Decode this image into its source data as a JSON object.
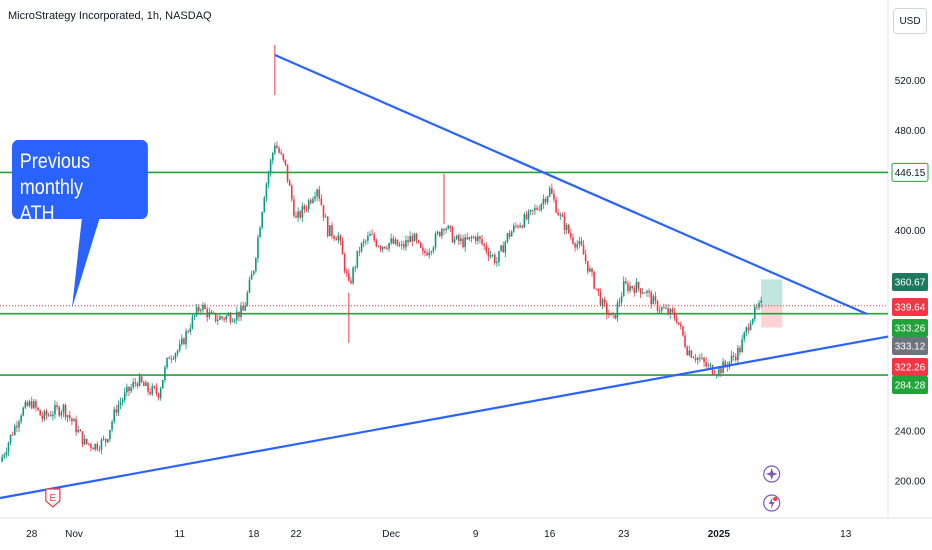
{
  "header": {
    "title": "MicroStrategy Incorporated, 1h, NASDAQ",
    "currency_button": "USD"
  },
  "annotation": {
    "text_line1": "Previous monthly",
    "text_line2": "ATH"
  },
  "colors": {
    "up": "#089981",
    "down": "#f23645",
    "trendline": "#2962ff",
    "hline": "#22a33a",
    "label_green": "#22a33a",
    "label_teal": "#1e7a5c",
    "label_red": "#f23645",
    "label_gray": "#6f737d"
  },
  "chart_data": {
    "type": "candlestick",
    "symbol": "MicroStrategy Incorporated",
    "interval": "1h",
    "exchange": "NASDAQ",
    "currency": "USD",
    "y_axis": {
      "ticks": [
        200.0,
        240.0,
        280.0,
        320.0,
        360.0,
        400.0,
        440.0,
        480.0,
        520.0
      ],
      "tick_labels": [
        "200.00",
        "240.00",
        "400.00",
        "480.00",
        "520.00"
      ],
      "range": [
        180,
        560
      ]
    },
    "x_axis": {
      "tick_labels": [
        "28",
        "Nov",
        "11",
        "18",
        "22",
        "Dec",
        "9",
        "16",
        "23",
        "2025",
        "13"
      ],
      "range": [
        "2024-10-25",
        "2025-01-17"
      ]
    },
    "horizontal_lines": [
      {
        "value": 446.15,
        "label": "446.15"
      },
      {
        "value": 333.26,
        "label": "333.26"
      },
      {
        "value": 284.28,
        "label": "284.28"
      }
    ],
    "trendlines": [
      {
        "from": {
          "date": "2024-11-20",
          "price": 540
        },
        "to": {
          "date": "2025-01-15",
          "price": 333
        }
      },
      {
        "from": {
          "date": "2024-10-25",
          "price": 186
        },
        "to": {
          "date": "2025-01-17",
          "price": 315
        }
      }
    ],
    "price_labels": [
      {
        "value": 360.67,
        "label": "360.67",
        "color": "teal"
      },
      {
        "value": 339.64,
        "label": "339.64",
        "color": "red"
      },
      {
        "value": 333.26,
        "label": "333.26",
        "color": "green"
      },
      {
        "value": 333.12,
        "label": "333.12",
        "color": "gray"
      },
      {
        "value": 322.26,
        "label": "322.26",
        "color": "red"
      },
      {
        "value": 284.28,
        "label": "284.28",
        "color": "green"
      }
    ],
    "dotted_price_line": 339.64,
    "position_tool": {
      "entry": 339.64,
      "target": 360.67,
      "stop": 322.26
    },
    "price_path": [
      [
        "2024-10-25",
        215
      ],
      [
        "2024-10-26",
        235
      ],
      [
        "2024-10-27",
        255
      ],
      [
        "2024-10-28",
        262
      ],
      [
        "2024-10-29",
        250
      ],
      [
        "2024-10-30",
        255
      ],
      [
        "2024-10-31",
        258
      ],
      [
        "2024-11-01",
        245
      ],
      [
        "2024-11-02",
        230
      ],
      [
        "2024-11-03",
        228
      ],
      [
        "2024-11-04",
        232
      ],
      [
        "2024-11-05",
        258
      ],
      [
        "2024-11-06",
        270
      ],
      [
        "2024-11-07",
        280
      ],
      [
        "2024-11-08",
        272
      ],
      [
        "2024-11-09",
        270
      ],
      [
        "2024-11-10",
        300
      ],
      [
        "2024-11-11",
        305
      ],
      [
        "2024-11-12",
        325
      ],
      [
        "2024-11-13",
        340
      ],
      [
        "2024-11-14",
        330
      ],
      [
        "2024-11-15",
        330
      ],
      [
        "2024-11-16",
        332
      ],
      [
        "2024-11-17",
        335
      ],
      [
        "2024-11-18",
        370
      ],
      [
        "2024-11-19",
        430
      ],
      [
        "2024-11-20",
        470
      ],
      [
        "2024-11-21",
        450
      ],
      [
        "2024-11-22",
        408
      ],
      [
        "2024-11-23",
        420
      ],
      [
        "2024-11-24",
        435
      ],
      [
        "2024-11-25",
        400
      ],
      [
        "2024-11-26",
        395
      ],
      [
        "2024-11-27",
        355
      ],
      [
        "2024-11-28",
        385
      ],
      [
        "2024-11-29",
        395
      ],
      [
        "2024-11-30",
        388
      ],
      [
        "2024-12-01",
        390
      ],
      [
        "2024-12-02",
        386
      ],
      [
        "2024-12-03",
        395
      ],
      [
        "2024-12-04",
        380
      ],
      [
        "2024-12-05",
        390
      ],
      [
        "2024-12-06",
        405
      ],
      [
        "2024-12-07",
        392
      ],
      [
        "2024-12-08",
        390
      ],
      [
        "2024-12-09",
        395
      ],
      [
        "2024-12-10",
        385
      ],
      [
        "2024-12-11",
        375
      ],
      [
        "2024-12-12",
        395
      ],
      [
        "2024-12-13",
        405
      ],
      [
        "2024-12-14",
        410
      ],
      [
        "2024-12-15",
        420
      ],
      [
        "2024-12-16",
        432
      ],
      [
        "2024-12-17",
        410
      ],
      [
        "2024-12-18",
        395
      ],
      [
        "2024-12-19",
        385
      ],
      [
        "2024-12-20",
        362
      ],
      [
        "2024-12-21",
        340
      ],
      [
        "2024-12-22",
        328
      ],
      [
        "2024-12-23",
        355
      ],
      [
        "2024-12-24",
        355
      ],
      [
        "2024-12-25",
        352
      ],
      [
        "2024-12-26",
        340
      ],
      [
        "2024-12-27",
        335
      ],
      [
        "2024-12-28",
        330
      ],
      [
        "2024-12-29",
        305
      ],
      [
        "2024-12-30",
        298
      ],
      [
        "2024-12-31",
        290
      ],
      [
        "2025-01-01",
        288
      ],
      [
        "2025-01-02",
        295
      ],
      [
        "2025-01-03",
        305
      ],
      [
        "2025-01-04",
        330
      ],
      [
        "2025-01-05",
        339.64
      ]
    ]
  }
}
